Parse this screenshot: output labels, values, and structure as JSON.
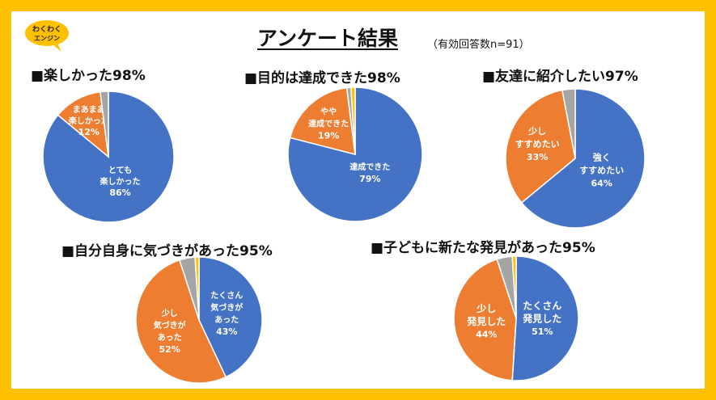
{
  "header": {
    "title": "アンケート結果",
    "subtitle": "（有効回答数n=91）",
    "logo_text": "わくわくエンジン"
  },
  "colors": {
    "frame": "#FFC000",
    "blue": "#4472C4",
    "orange": "#ED7D31",
    "gray": "#A5A5A5",
    "yellow": "#FFC000"
  },
  "chart_data": [
    {
      "type": "pie",
      "title": "■楽しかった98%",
      "slices": [
        {
          "label": [
            "とても",
            "楽しかった"
          ],
          "value": 86,
          "value_label": "86%",
          "color": "#4472C4"
        },
        {
          "label": [
            "まあまあ",
            "楽しかった"
          ],
          "value": 12,
          "value_label": "12%",
          "color": "#ED7D31"
        },
        {
          "label": [],
          "value": 2,
          "value_label": "",
          "color": "#A5A5A5"
        }
      ]
    },
    {
      "type": "pie",
      "title": "■目的は達成できた98%",
      "slices": [
        {
          "label": [
            "達成できた"
          ],
          "value": 79,
          "value_label": "79%",
          "color": "#4472C4"
        },
        {
          "label": [
            "やや",
            "達成できた"
          ],
          "value": 19,
          "value_label": "19%",
          "color": "#ED7D31"
        },
        {
          "label": [],
          "value": 1,
          "value_label": "",
          "color": "#A5A5A5"
        },
        {
          "label": [],
          "value": 1,
          "value_label": "",
          "color": "#FFC000"
        }
      ]
    },
    {
      "type": "pie",
      "title": "■友達に紹介したい97%",
      "slices": [
        {
          "label": [
            "強く",
            "すすめたい"
          ],
          "value": 64,
          "value_label": "64%",
          "color": "#4472C4"
        },
        {
          "label": [
            "少し",
            "すすめたい"
          ],
          "value": 33,
          "value_label": "33%",
          "color": "#ED7D31"
        },
        {
          "label": [],
          "value": 3,
          "value_label": "",
          "color": "#A5A5A5"
        }
      ]
    },
    {
      "type": "pie",
      "title": "■自分自身に気づきがあった95%",
      "slices": [
        {
          "label": [
            "たくさん",
            "気づきが",
            "あった"
          ],
          "value": 43,
          "value_label": "43%",
          "color": "#4472C4"
        },
        {
          "label": [
            "少し",
            "気づきが",
            "あった"
          ],
          "value": 52,
          "value_label": "52%",
          "color": "#ED7D31"
        },
        {
          "label": [],
          "value": 4,
          "value_label": "",
          "color": "#A5A5A5"
        },
        {
          "label": [],
          "value": 1,
          "value_label": "",
          "color": "#FFC000"
        }
      ]
    },
    {
      "type": "pie",
      "title": "■子どもに新たな発見があった95%",
      "slices": [
        {
          "label": [
            "たくさん",
            "発見した"
          ],
          "value": 51,
          "value_label": "51%",
          "color": "#4472C4"
        },
        {
          "label": [
            "少し",
            "発見した"
          ],
          "value": 44,
          "value_label": "44%",
          "color": "#ED7D31"
        },
        {
          "label": [],
          "value": 4,
          "value_label": "",
          "color": "#A5A5A5"
        },
        {
          "label": [],
          "value": 1,
          "value_label": "",
          "color": "#FFC000"
        }
      ]
    }
  ]
}
